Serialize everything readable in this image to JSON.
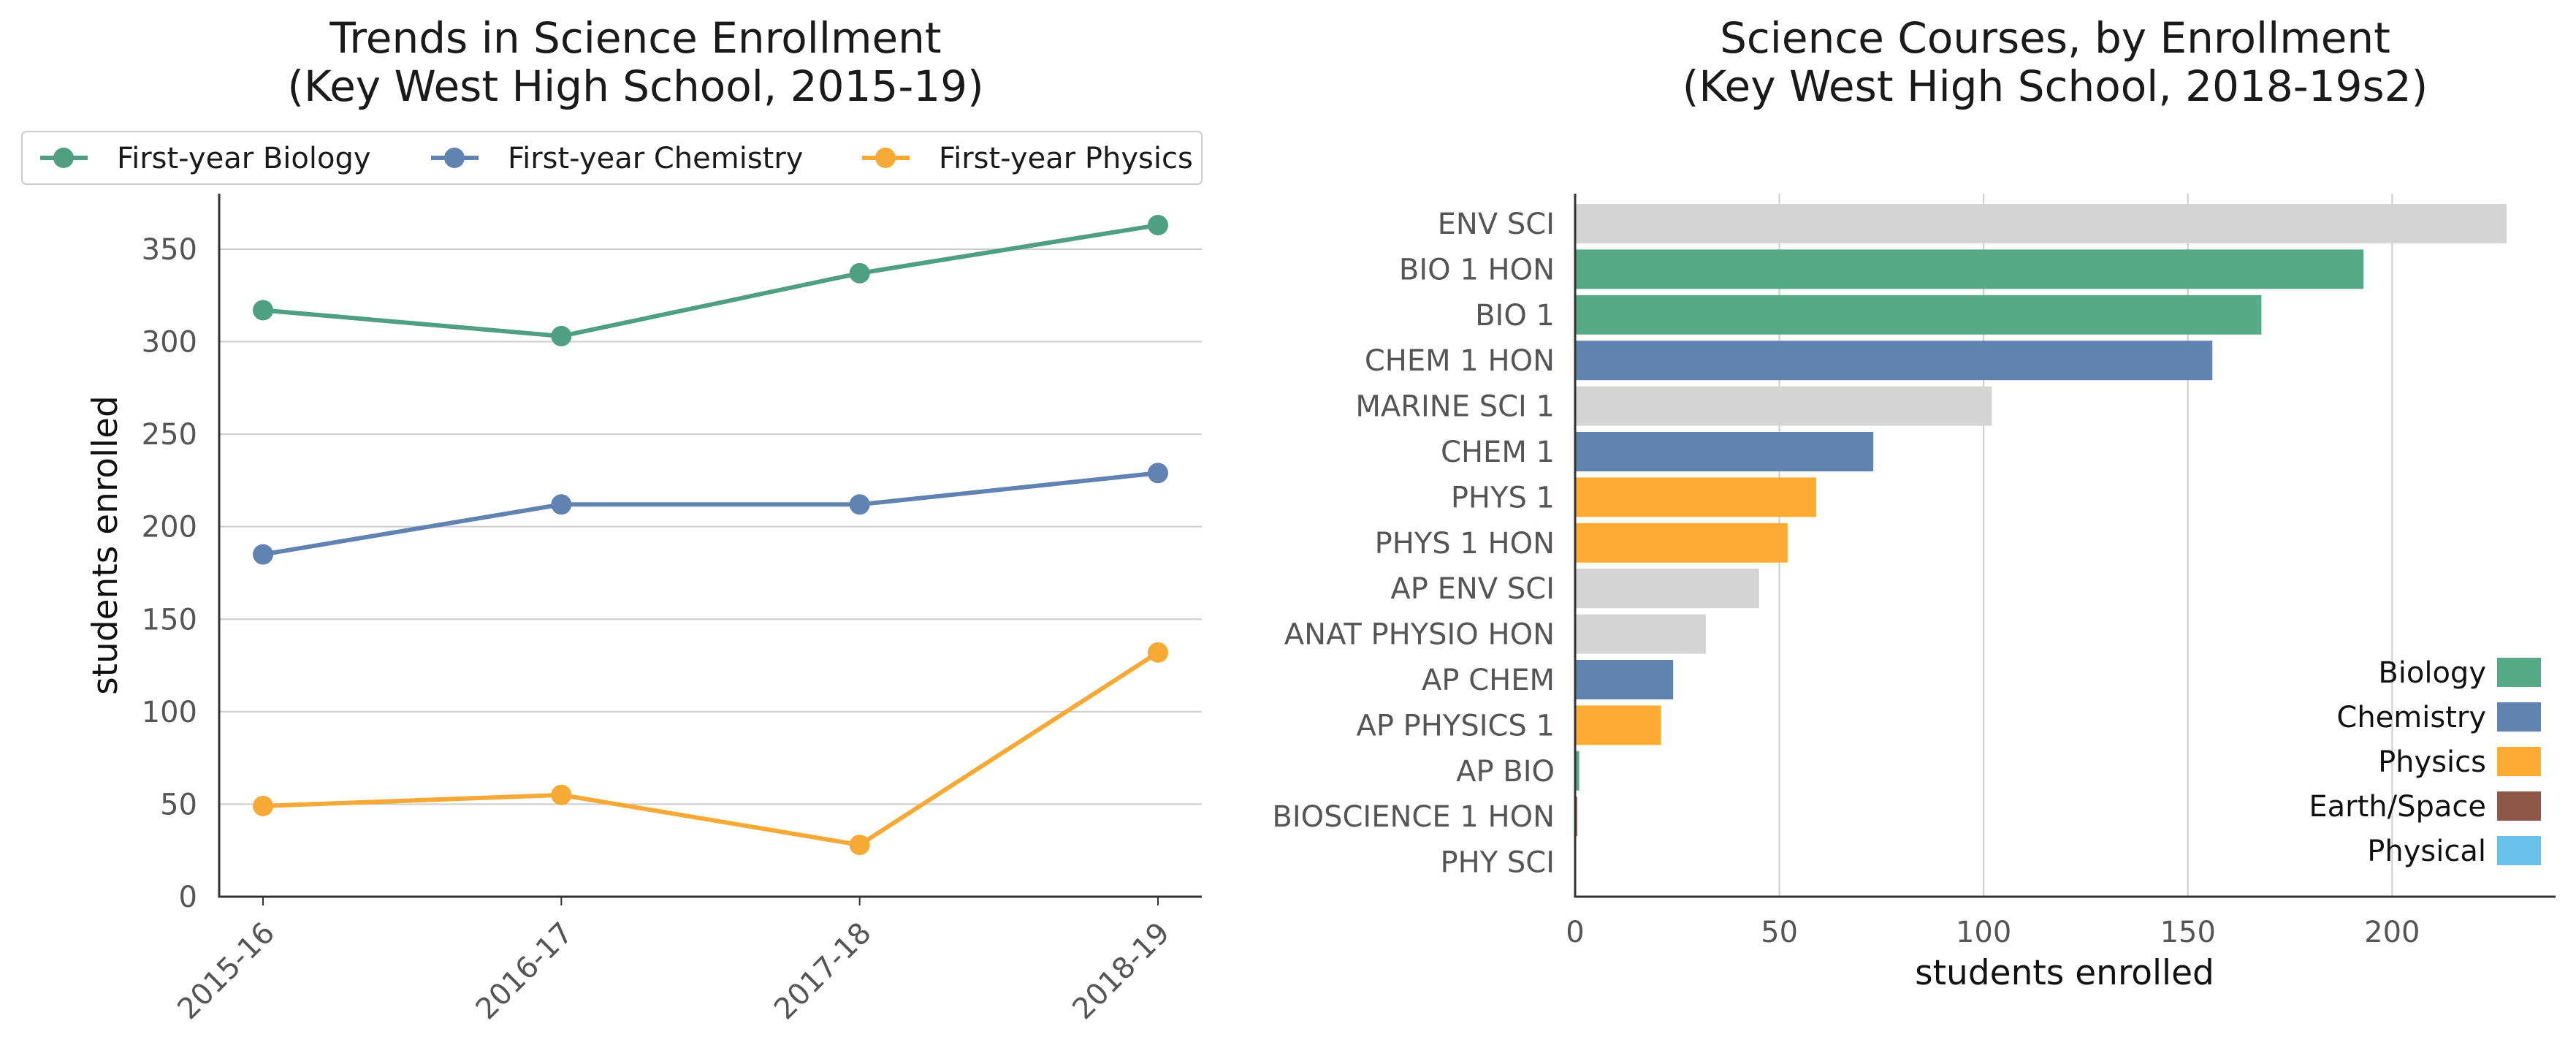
{
  "chart_data": [
    {
      "type": "line",
      "title": "Trends in Science Enrollment",
      "subtitle": "(Key West High School, 2015-19)",
      "xlabel": "",
      "ylabel": "students enrolled",
      "categories": [
        "2015-16",
        "2016-17",
        "2017-18",
        "2018-19"
      ],
      "ylim": [
        0,
        380
      ],
      "yticks": [
        0,
        50,
        100,
        150,
        200,
        250,
        300,
        350
      ],
      "grid": true,
      "legend_position": "top",
      "series": [
        {
          "name": "First-year Biology",
          "color": "#4f9f82",
          "values": [
            317,
            303,
            337,
            363
          ]
        },
        {
          "name": "First-year Chemistry",
          "color": "#6083b1",
          "values": [
            185,
            212,
            212,
            229
          ]
        },
        {
          "name": "First-year Physics",
          "color": "#f7a935",
          "values": [
            49,
            55,
            28,
            132
          ]
        }
      ]
    },
    {
      "type": "bar",
      "orientation": "horizontal",
      "title": "Science Courses, by Enrollment",
      "subtitle": "(Key West High School, 2018-19s2)",
      "xlabel": "students enrolled",
      "ylabel": "",
      "xlim": [
        0,
        240
      ],
      "xticks": [
        0,
        50,
        100,
        150,
        200
      ],
      "grid": true,
      "legend_position": "bottom-right",
      "categories": [
        "ENV SCI",
        "BIO 1 HON",
        "BIO 1",
        "CHEM 1 HON",
        "MARINE SCI 1",
        "CHEM 1",
        "PHYS 1",
        "PHYS 1 HON",
        "AP ENV SCI",
        "ANAT PHYSIO HON",
        "AP CHEM",
        "AP PHYSICS 1",
        "AP BIO",
        "BIOSCIENCE 1 HON",
        "PHY SCI"
      ],
      "values": [
        228,
        193,
        168,
        156,
        102,
        73,
        59,
        52,
        45,
        32,
        24,
        21,
        1,
        0.5,
        0
      ],
      "bar_groups": [
        "other",
        "Biology",
        "Biology",
        "Chemistry",
        "other",
        "Chemistry",
        "Physics",
        "Physics",
        "other",
        "other",
        "Chemistry",
        "Physics",
        "Biology",
        "Earth/Space",
        "Physical"
      ],
      "colors": {
        "Biology": "#55ab87",
        "Chemistry": "#6183b2",
        "Physics": "#fdab33",
        "Earth/Space": "#8c5746",
        "Physical": "#6ac1ea",
        "other": "#d4d4d4"
      },
      "legend": [
        "Biology",
        "Chemistry",
        "Physics",
        "Earth/Space",
        "Physical"
      ]
    }
  ]
}
